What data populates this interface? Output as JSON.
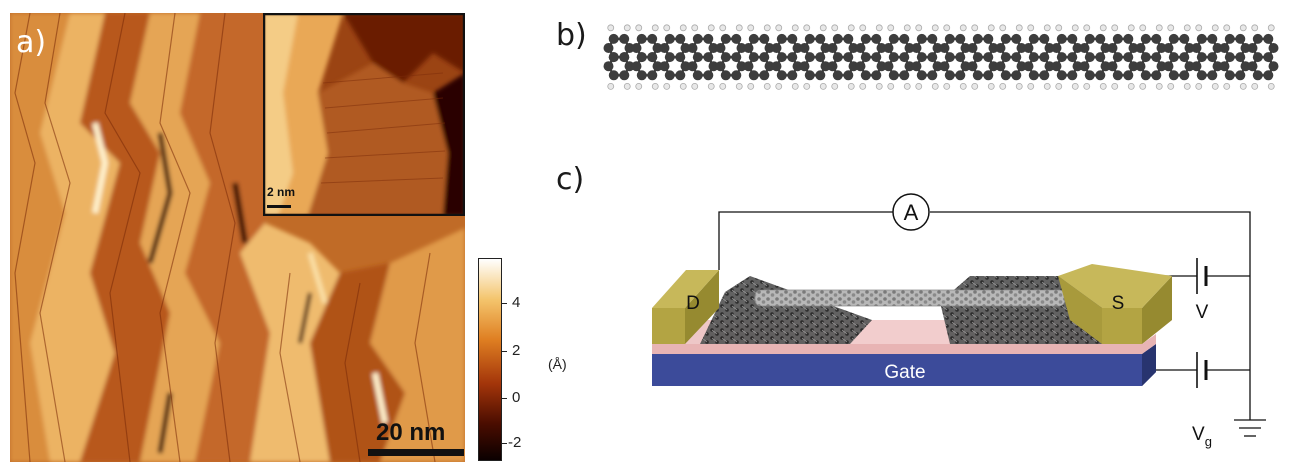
{
  "panels": {
    "a": {
      "label": "a)",
      "scale_bar": "20 nm",
      "inset_scale_bar": "2 nm",
      "colorbar": {
        "unit": "(Å)",
        "ticks": [
          "4",
          "2",
          "0",
          "-2"
        ],
        "range": [
          -2.8,
          5.8
        ],
        "colors": [
          "#0b0000",
          "#4a0d00",
          "#a3350a",
          "#df7f22",
          "#f4c56d",
          "#ffffff"
        ]
      }
    },
    "b": {
      "label": "b)"
    },
    "c": {
      "label": "c)",
      "ammeter": "A",
      "drain": "D",
      "source": "S",
      "gate": "Gate",
      "bias": "V",
      "gate_bias": "V",
      "gate_bias_sub": "g"
    }
  }
}
